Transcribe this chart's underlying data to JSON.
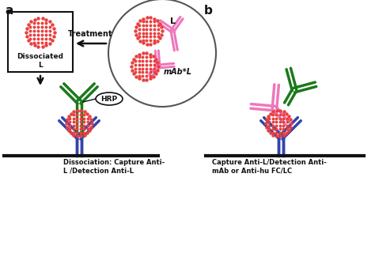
{
  "title_a": "a",
  "title_b": "b",
  "label_dissociated": "Dissociated L",
  "label_treatment": "Treatment",
  "label_mab": "mAb*L",
  "label_L": "L",
  "label_HRP": "HRP",
  "label_bottom_a": "Dissociation: Capture Anti-\nL /Detection Anti-L",
  "label_bottom_b": "Capture Anti-L/Detection Anti-\nmAb or Anti-hu FC/LC",
  "color_green": "#1a7a1a",
  "color_blue": "#3344aa",
  "color_pink": "#ee77bb",
  "color_red_ball": "#e84040",
  "color_black": "#111111",
  "color_white": "#ffffff",
  "bg_color": "#ffffff",
  "fig_width": 4.74,
  "fig_height": 3.39,
  "dpi": 100
}
